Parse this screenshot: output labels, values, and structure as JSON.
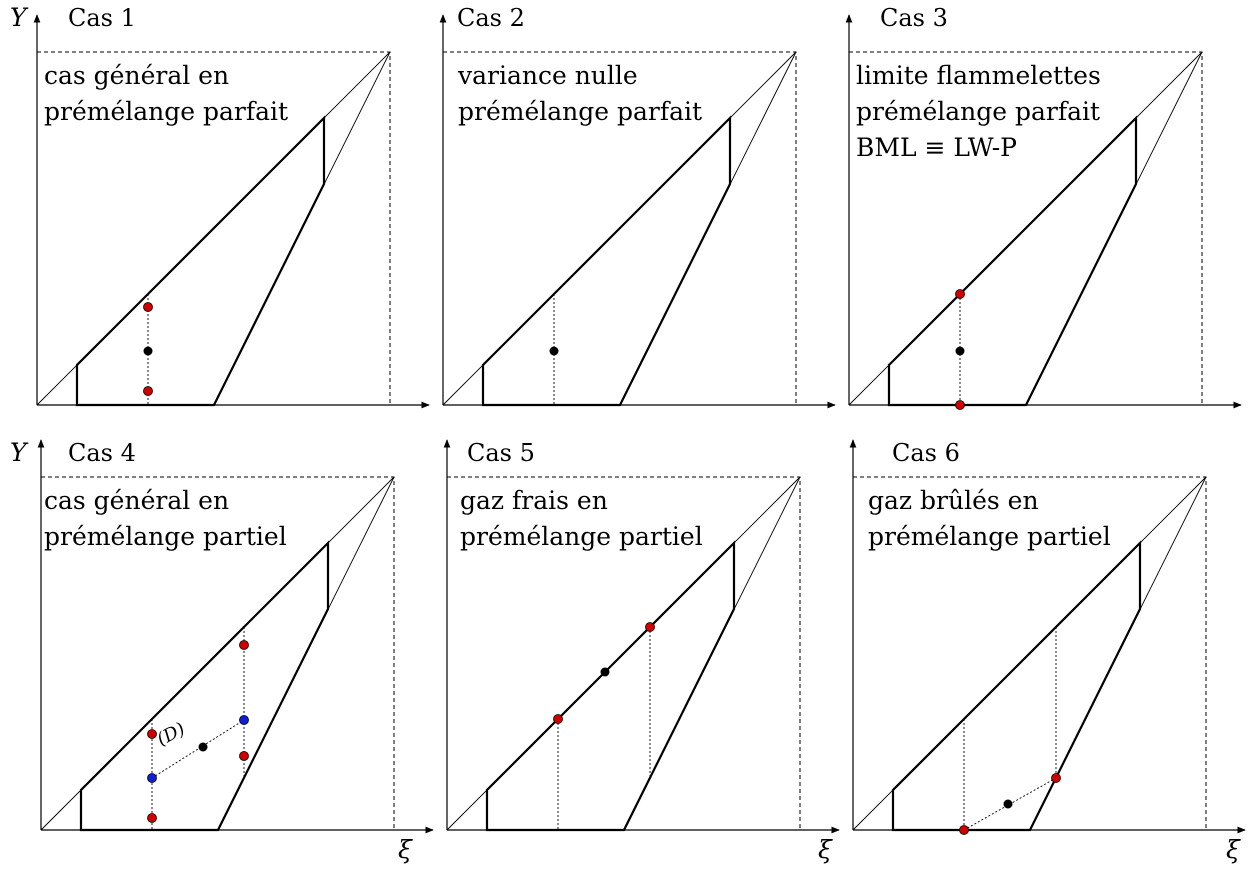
{
  "axes": {
    "y_symbol": "Y",
    "x_symbol": "ξ"
  },
  "colors": {
    "red_point": "#d00000",
    "blue_point": "#1020d0",
    "black_point": "#000000"
  },
  "d_label": "(D)",
  "panels": [
    {
      "label": "Cas 1",
      "desc": [
        "cas général en",
        "prémélange parfait"
      ]
    },
    {
      "label": "Cas 2",
      "desc": [
        "variance nulle",
        "prémélange parfait"
      ]
    },
    {
      "label": "Cas 3",
      "desc": [
        "limite flammelettes",
        "prémélange parfait",
        "BML ≡ LW-P"
      ]
    },
    {
      "label": "Cas 4",
      "desc": [
        "cas général en",
        "prémélange partiel"
      ]
    },
    {
      "label": "Cas 5",
      "desc": [
        "gaz frais en",
        "prémélange partiel"
      ]
    },
    {
      "label": "Cas 6",
      "desc": [
        "gaz brûlés en",
        "prémélange partiel"
      ]
    }
  ]
}
